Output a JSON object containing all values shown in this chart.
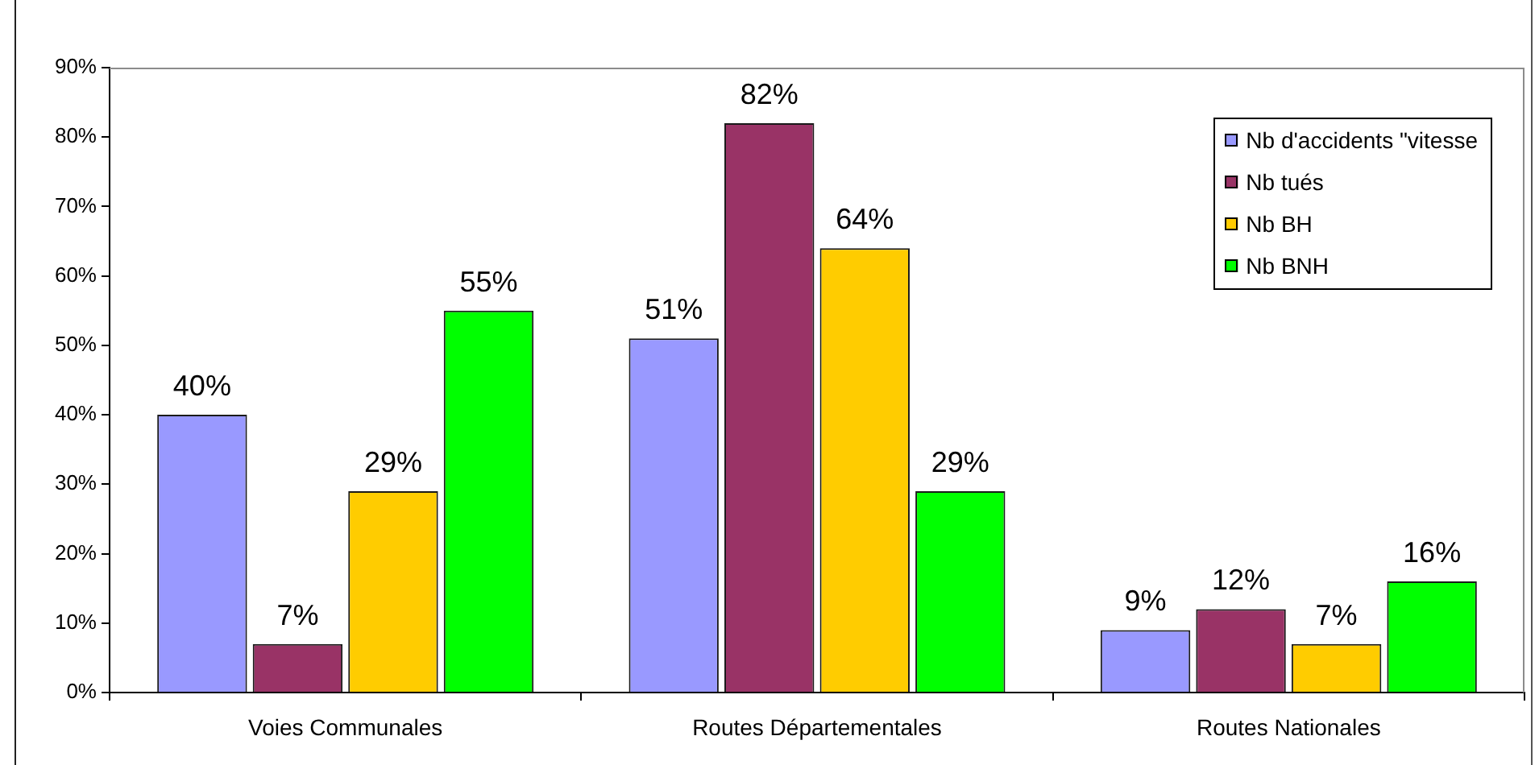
{
  "chart_data": {
    "type": "bar",
    "categories": [
      "Voies Communales",
      "Routes Départementales",
      "Routes Nationales"
    ],
    "series": [
      {
        "name": "Nb d'accidents \"vitesse",
        "color": "#9999ff",
        "values": [
          40,
          51,
          9
        ],
        "value_labels": [
          "40%",
          "51%",
          "9%"
        ]
      },
      {
        "name": "Nb tués",
        "color": "#993366",
        "values": [
          7,
          82,
          12
        ],
        "value_labels": [
          "7%",
          "82%",
          "12%"
        ]
      },
      {
        "name": "Nb BH",
        "color": "#ffcc00",
        "values": [
          29,
          64,
          7
        ],
        "value_labels": [
          "29%",
          "64%",
          "7%"
        ]
      },
      {
        "name": "Nb BNH",
        "color": "#00ff00",
        "values": [
          55,
          29,
          16
        ],
        "value_labels": [
          "55%",
          "29%",
          "16%"
        ]
      }
    ],
    "ylim": [
      0,
      90
    ],
    "yticks": [
      {
        "value": 0,
        "label": "0%"
      },
      {
        "value": 10,
        "label": "10%"
      },
      {
        "value": 20,
        "label": "20%"
      },
      {
        "value": 30,
        "label": "30%"
      },
      {
        "value": 40,
        "label": "40%"
      },
      {
        "value": 50,
        "label": "50%"
      },
      {
        "value": 60,
        "label": "60%"
      },
      {
        "value": 70,
        "label": "70%"
      },
      {
        "value": 80,
        "label": "80%"
      },
      {
        "value": 90,
        "label": "90%"
      }
    ],
    "grid": false,
    "legend": "top right"
  }
}
